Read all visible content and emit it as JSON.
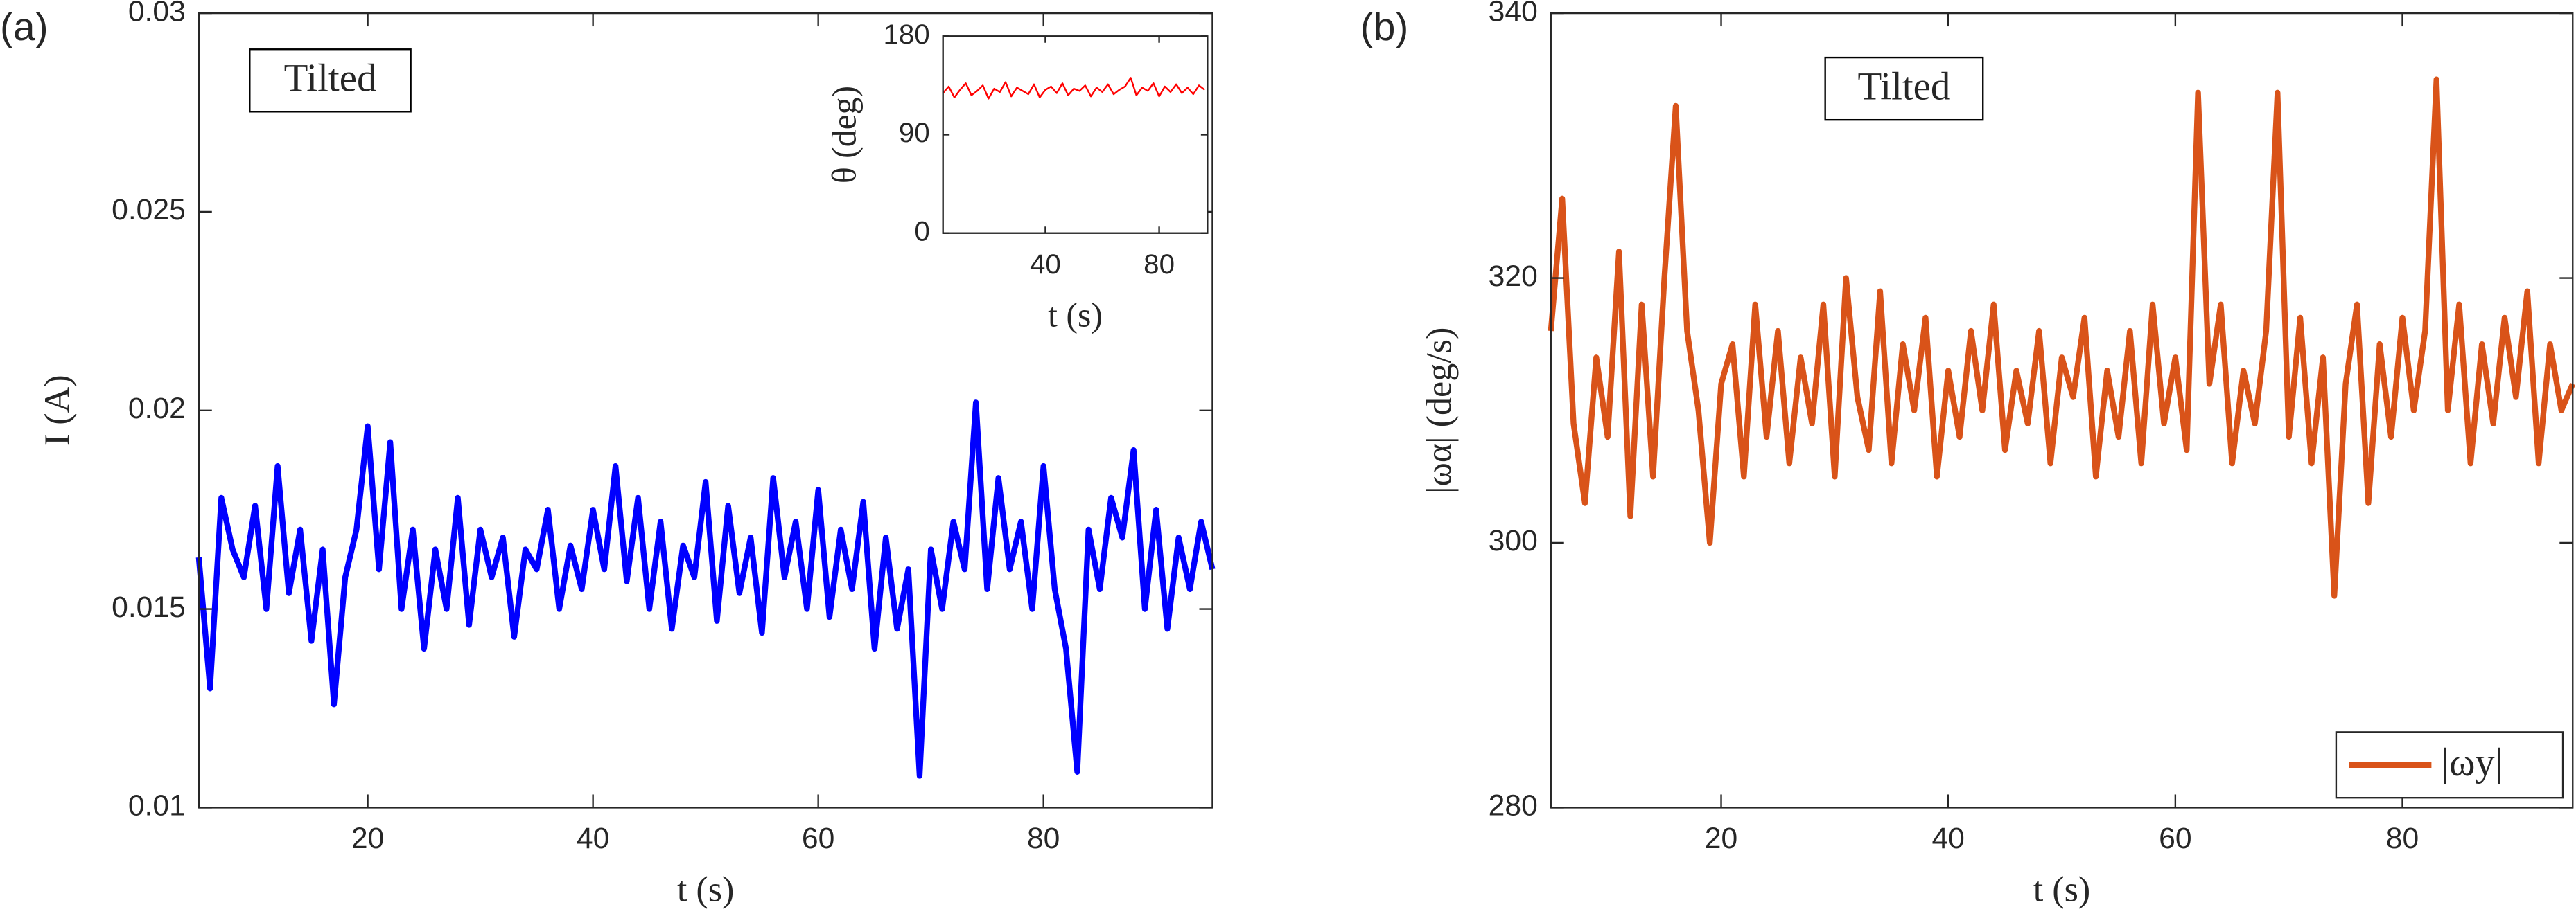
{
  "chart_data": [
    {
      "type": "line",
      "label": "(a)",
      "annotation": "Tilted",
      "xlabel": "t (s)",
      "ylabel": "I (A)",
      "xlim": [
        5,
        95
      ],
      "xticks": [
        20,
        40,
        60,
        80
      ],
      "ylim": [
        0.01,
        0.03
      ],
      "yticks": [
        0.01,
        0.015,
        0.02,
        0.025,
        0.03
      ],
      "x": [
        5,
        6,
        7,
        8,
        9,
        10,
        11,
        12,
        13,
        14,
        15,
        16,
        17,
        18,
        19,
        20,
        21,
        22,
        23,
        24,
        25,
        26,
        27,
        28,
        29,
        30,
        31,
        32,
        33,
        34,
        35,
        36,
        37,
        38,
        39,
        40,
        41,
        42,
        43,
        44,
        45,
        46,
        47,
        48,
        49,
        50,
        51,
        52,
        53,
        54,
        55,
        56,
        57,
        58,
        59,
        60,
        61,
        62,
        63,
        64,
        65,
        66,
        67,
        68,
        69,
        70,
        71,
        72,
        73,
        74,
        75,
        76,
        77,
        78,
        79,
        80,
        81,
        82,
        83,
        84,
        85,
        86,
        87,
        88,
        89,
        90,
        91,
        92,
        93,
        94,
        95
      ],
      "series": [
        {
          "color": "#0000ff",
          "values": [
            0.0163,
            0.013,
            0.0178,
            0.0165,
            0.0158,
            0.0176,
            0.015,
            0.0186,
            0.0154,
            0.017,
            0.0142,
            0.0165,
            0.0126,
            0.0158,
            0.017,
            0.0196,
            0.016,
            0.0192,
            0.015,
            0.017,
            0.014,
            0.0165,
            0.015,
            0.0178,
            0.0146,
            0.017,
            0.0158,
            0.0168,
            0.0143,
            0.0165,
            0.016,
            0.0175,
            0.015,
            0.0166,
            0.0155,
            0.0175,
            0.016,
            0.0186,
            0.0157,
            0.0178,
            0.015,
            0.0172,
            0.0145,
            0.0166,
            0.0158,
            0.0182,
            0.0147,
            0.0176,
            0.0154,
            0.0168,
            0.0144,
            0.0183,
            0.0158,
            0.0172,
            0.015,
            0.018,
            0.0148,
            0.017,
            0.0155,
            0.0177,
            0.014,
            0.0168,
            0.0145,
            0.016,
            0.0108,
            0.0165,
            0.015,
            0.0172,
            0.016,
            0.0202,
            0.0155,
            0.0183,
            0.016,
            0.0172,
            0.015,
            0.0186,
            0.0155,
            0.014,
            0.0109,
            0.017,
            0.0155,
            0.0178,
            0.0168,
            0.019,
            0.015,
            0.0175,
            0.0145,
            0.0168,
            0.0155,
            0.0172,
            0.016
          ]
        }
      ]
    },
    {
      "type": "line",
      "xlabel": "t (s)",
      "ylabel": "θ (deg)",
      "xlim": [
        4,
        97
      ],
      "xticks": [
        40,
        80
      ],
      "ylim": [
        0,
        180
      ],
      "yticks": [
        0,
        90,
        180
      ],
      "x": [
        4,
        6,
        8,
        10,
        12,
        14,
        16,
        18,
        20,
        22,
        24,
        26,
        28,
        30,
        32,
        34,
        36,
        38,
        40,
        42,
        44,
        46,
        48,
        50,
        52,
        54,
        56,
        58,
        60,
        62,
        64,
        66,
        68,
        70,
        72,
        74,
        76,
        78,
        80,
        82,
        84,
        86,
        88,
        90,
        92,
        94,
        96
      ],
      "series": [
        {
          "color": "#ff0000",
          "values": [
            128,
            134,
            124,
            131,
            137,
            126,
            130,
            135,
            123,
            132,
            129,
            138,
            125,
            133,
            130,
            127,
            136,
            124,
            131,
            134,
            128,
            137,
            126,
            132,
            130,
            135,
            125,
            133,
            129,
            136,
            127,
            131,
            134,
            142,
            126,
            133,
            130,
            137,
            125,
            134,
            129,
            136,
            128,
            133,
            127,
            135,
            131
          ]
        }
      ]
    },
    {
      "type": "line",
      "label": "(b)",
      "annotation": "Tilted",
      "xlabel": "t (s)",
      "ylabel": "|ωα| (deg/s)",
      "legend": "lower right",
      "xlim": [
        5,
        95
      ],
      "xticks": [
        20,
        40,
        60,
        80
      ],
      "ylim": [
        280,
        340
      ],
      "yticks": [
        280,
        300,
        320,
        340
      ],
      "x": [
        5,
        6,
        7,
        8,
        9,
        10,
        11,
        12,
        13,
        14,
        15,
        16,
        17,
        18,
        19,
        20,
        21,
        22,
        23,
        24,
        25,
        26,
        27,
        28,
        29,
        30,
        31,
        32,
        33,
        34,
        35,
        36,
        37,
        38,
        39,
        40,
        41,
        42,
        43,
        44,
        45,
        46,
        47,
        48,
        49,
        50,
        51,
        52,
        53,
        54,
        55,
        56,
        57,
        58,
        59,
        60,
        61,
        62,
        63,
        64,
        65,
        66,
        67,
        68,
        69,
        70,
        71,
        72,
        73,
        74,
        75,
        76,
        77,
        78,
        79,
        80,
        81,
        82,
        83,
        84,
        85,
        86,
        87,
        88,
        89,
        90,
        91,
        92,
        93,
        94,
        95
      ],
      "series": [
        {
          "name": "|ωy|",
          "color": "#d95319",
          "values": [
            316,
            326,
            309,
            303,
            314,
            308,
            322,
            302,
            318,
            305,
            320,
            333,
            316,
            310,
            300,
            312,
            315,
            305,
            318,
            308,
            316,
            306,
            314,
            309,
            318,
            305,
            320,
            311,
            307,
            319,
            306,
            315,
            310,
            317,
            305,
            313,
            308,
            316,
            310,
            318,
            307,
            313,
            309,
            316,
            306,
            314,
            311,
            317,
            305,
            313,
            308,
            316,
            306,
            318,
            309,
            314,
            307,
            334,
            312,
            318,
            306,
            313,
            309,
            316,
            334,
            308,
            317,
            306,
            314,
            296,
            312,
            318,
            303,
            315,
            308,
            317,
            310,
            316,
            335,
            310,
            318,
            306,
            315,
            309,
            317,
            311,
            319,
            306,
            315,
            310,
            312
          ]
        }
      ]
    }
  ]
}
